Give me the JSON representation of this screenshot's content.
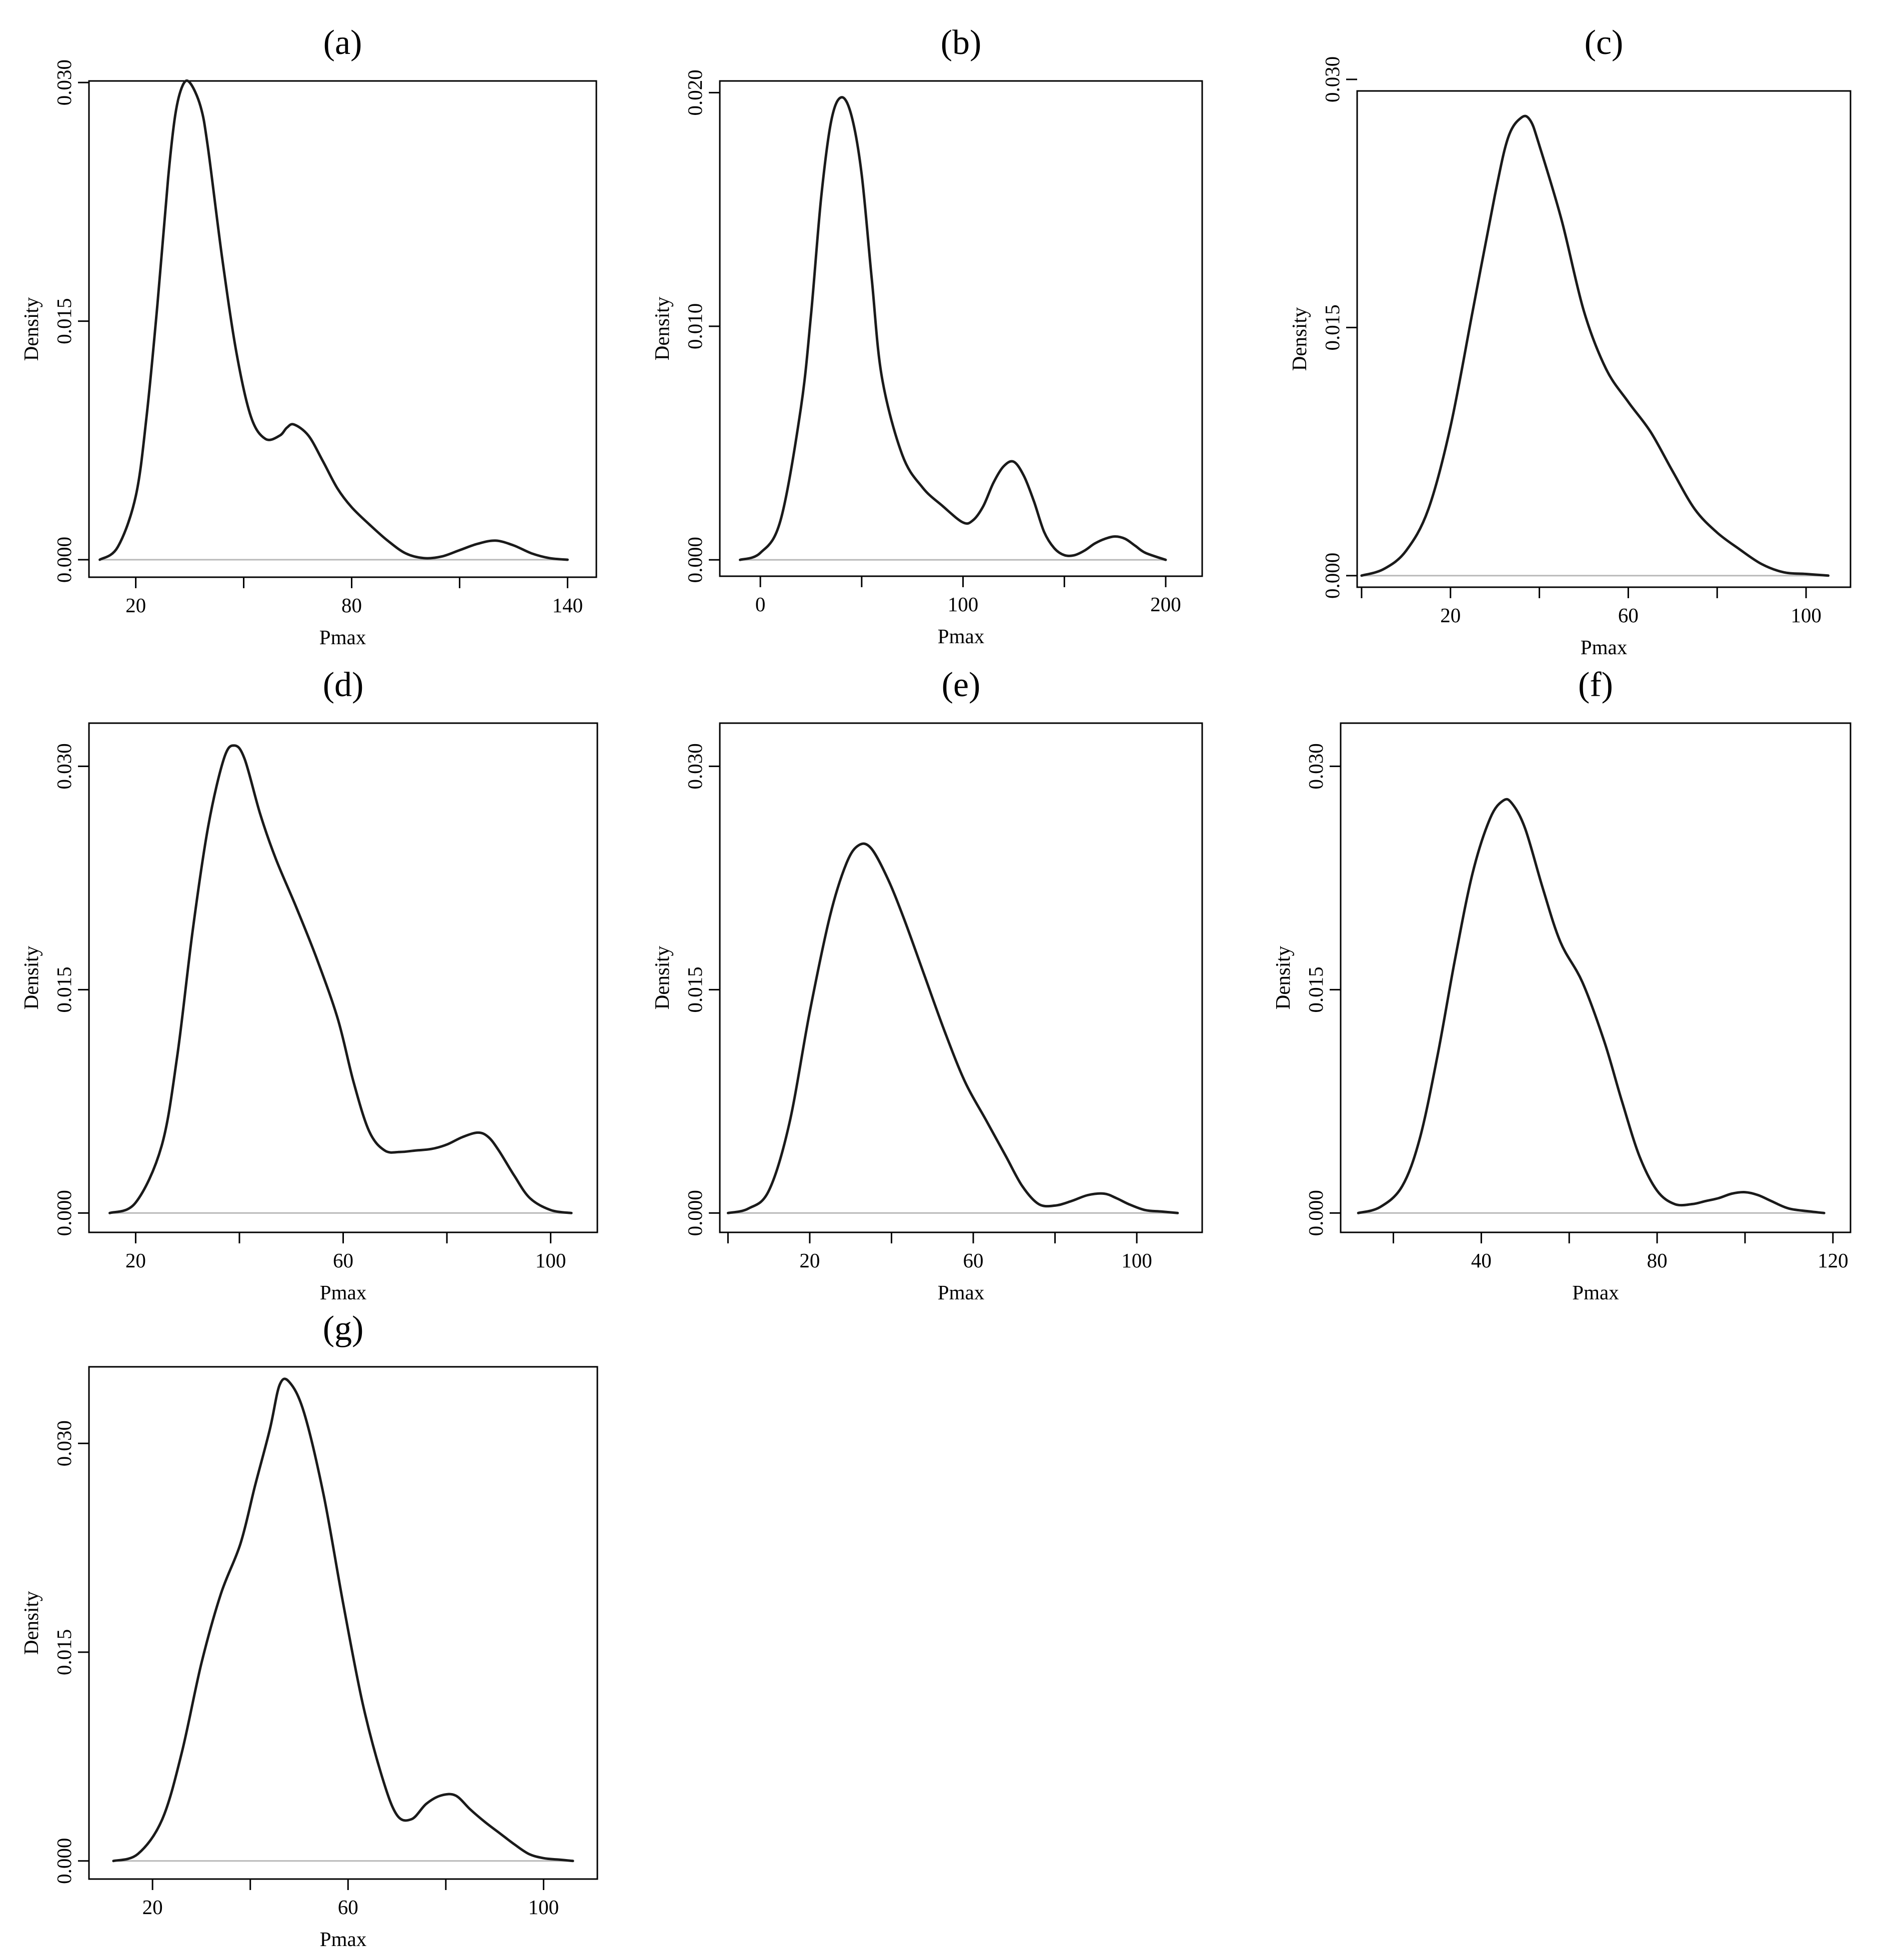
{
  "chart_data": [
    {
      "panel": "(a)",
      "type": "line",
      "xlabel": "Pmax",
      "ylabel": "Density",
      "xlim": [
        7,
        148
      ],
      "ylim": [
        -0.0011,
        0.0301
      ],
      "xticks": [
        20,
        80,
        140
      ],
      "xminor": [
        50,
        110
      ],
      "yticks": [
        0.0,
        0.015,
        0.03
      ],
      "ytick_labels": [
        "0.000",
        "0.015",
        "0.030"
      ],
      "x": [
        10,
        15,
        20,
        23,
        26,
        29,
        31,
        33,
        35,
        38,
        40,
        44,
        48,
        52,
        56,
        60,
        62,
        64,
        68,
        72,
        76,
        80,
        85,
        90,
        95,
        100,
        105,
        110,
        115,
        120,
        125,
        130,
        135,
        140
      ],
      "values": [
        0.0,
        0.0008,
        0.004,
        0.009,
        0.016,
        0.024,
        0.028,
        0.0298,
        0.03,
        0.0285,
        0.026,
        0.019,
        0.013,
        0.009,
        0.0076,
        0.0078,
        0.0083,
        0.0085,
        0.0078,
        0.0062,
        0.0045,
        0.0033,
        0.0022,
        0.0012,
        0.0004,
        0.0001,
        0.0002,
        0.0006,
        0.001,
        0.0012,
        0.0009,
        0.0004,
        0.0001,
        0.0
      ]
    },
    {
      "panel": "(b)",
      "type": "line",
      "xlabel": "Pmax",
      "ylabel": "Density",
      "xlim": [
        -20,
        218
      ],
      "ylim": [
        -0.0007,
        0.0205
      ],
      "xticks": [
        0,
        100,
        200
      ],
      "xminor": [
        50,
        150
      ],
      "yticks": [
        0.0,
        0.01,
        0.02
      ],
      "ytick_labels": [
        "0.000",
        "0.010",
        "0.020"
      ],
      "x": [
        -10,
        0,
        10,
        20,
        25,
        30,
        35,
        40,
        45,
        50,
        55,
        60,
        70,
        80,
        90,
        100,
        105,
        110,
        115,
        120,
        125,
        130,
        135,
        140,
        145,
        150,
        155,
        160,
        165,
        170,
        175,
        180,
        185,
        190,
        200
      ],
      "values": [
        0.0,
        0.0003,
        0.0017,
        0.0065,
        0.0105,
        0.0155,
        0.0188,
        0.0198,
        0.019,
        0.0165,
        0.012,
        0.0078,
        0.0045,
        0.0031,
        0.0023,
        0.0016,
        0.0017,
        0.0023,
        0.0033,
        0.004,
        0.0042,
        0.0036,
        0.0025,
        0.0012,
        0.0005,
        0.0002,
        0.0002,
        0.0004,
        0.0007,
        0.0009,
        0.001,
        0.0009,
        0.0006,
        0.0003,
        0.0
      ]
    },
    {
      "panel": "(c)",
      "type": "line",
      "xlabel": "Pmax",
      "ylabel": "Density",
      "xlim": [
        -1,
        110
      ],
      "ylim": [
        -0.0007,
        0.0293
      ],
      "xticks": [
        20,
        60,
        100
      ],
      "xminor": [
        0,
        40,
        80
      ],
      "yticks": [
        0.0,
        0.015,
        0.03
      ],
      "ytick_labels": [
        "0.000",
        "0.015",
        "0.030"
      ],
      "x": [
        0,
        5,
        10,
        15,
        20,
        25,
        30,
        33,
        36,
        38,
        40,
        45,
        50,
        55,
        60,
        65,
        70,
        75,
        80,
        85,
        90,
        95,
        100,
        105
      ],
      "values": [
        0.0,
        0.0004,
        0.0015,
        0.004,
        0.009,
        0.016,
        0.023,
        0.0265,
        0.0277,
        0.0275,
        0.026,
        0.0215,
        0.016,
        0.0125,
        0.0105,
        0.0087,
        0.0063,
        0.004,
        0.0026,
        0.0016,
        0.0007,
        0.0002,
        0.0001,
        0.0
      ]
    },
    {
      "panel": "(d)",
      "type": "line",
      "xlabel": "Pmax",
      "ylabel": "Density",
      "xlim": [
        11,
        109
      ],
      "ylim": [
        -0.0013,
        0.0329
      ],
      "xticks": [
        20,
        60,
        100
      ],
      "xminor": [
        40,
        80
      ],
      "yticks": [
        0.0,
        0.015,
        0.03
      ],
      "ytick_labels": [
        "0.000",
        "0.015",
        "0.030"
      ],
      "x": [
        15,
        20,
        25,
        28,
        31,
        34,
        37,
        39,
        41,
        44,
        47,
        51,
        55,
        59,
        62,
        65,
        68,
        71,
        74,
        77,
        80,
        83,
        86,
        88,
        90,
        93,
        96,
        100,
        104
      ],
      "values": [
        0.0,
        0.0007,
        0.0045,
        0.0105,
        0.019,
        0.026,
        0.0305,
        0.0314,
        0.0305,
        0.0268,
        0.0238,
        0.0205,
        0.017,
        0.013,
        0.0088,
        0.0055,
        0.0042,
        0.0041,
        0.0042,
        0.0043,
        0.0046,
        0.0051,
        0.0054,
        0.0051,
        0.0042,
        0.0025,
        0.001,
        0.0002,
        0.0
      ]
    },
    {
      "panel": "(e)",
      "type": "line",
      "xlabel": "Pmax",
      "ylabel": "Density",
      "xlim": [
        -2,
        116
      ],
      "ylim": [
        -0.0013,
        0.0329
      ],
      "xticks": [
        20,
        60,
        100
      ],
      "xminor": [
        0,
        40,
        80
      ],
      "yticks": [
        0.0,
        0.015,
        0.03
      ],
      "ytick_labels": [
        "0.000",
        "0.015",
        "0.030"
      ],
      "x": [
        0,
        5,
        10,
        15,
        20,
        25,
        29,
        32,
        35,
        39,
        43,
        48,
        53,
        58,
        63,
        68,
        72,
        76,
        80,
        84,
        88,
        92,
        95,
        98,
        102,
        106,
        110
      ],
      "values": [
        0.0,
        0.0003,
        0.0015,
        0.006,
        0.0135,
        0.02,
        0.0235,
        0.0247,
        0.0245,
        0.0225,
        0.0198,
        0.016,
        0.0122,
        0.0088,
        0.0063,
        0.0038,
        0.0018,
        0.0006,
        0.0005,
        0.0008,
        0.0012,
        0.0013,
        0.001,
        0.0006,
        0.0002,
        0.0001,
        0.0
      ]
    },
    {
      "panel": "(f)",
      "type": "line",
      "xlabel": "Pmax",
      "ylabel": "Density",
      "xlim": [
        8,
        124
      ],
      "ylim": [
        -0.0013,
        0.0329
      ],
      "xticks": [
        40,
        80,
        120
      ],
      "xminor": [
        20,
        60,
        100
      ],
      "yticks": [
        0.0,
        0.015,
        0.03
      ],
      "ytick_labels": [
        "0.000",
        "0.015",
        "0.030"
      ],
      "x": [
        12,
        17,
        22,
        26,
        30,
        34,
        38,
        42,
        45,
        47,
        50,
        54,
        58,
        63,
        68,
        72,
        76,
        80,
        84,
        88,
        91,
        94,
        97,
        100,
        103,
        106,
        110,
        115,
        118
      ],
      "values": [
        0.0,
        0.0004,
        0.0018,
        0.005,
        0.0105,
        0.017,
        0.0228,
        0.0265,
        0.0277,
        0.0275,
        0.0258,
        0.0218,
        0.0182,
        0.0155,
        0.0115,
        0.0075,
        0.0038,
        0.0015,
        0.0006,
        0.0006,
        0.0008,
        0.001,
        0.0013,
        0.0014,
        0.0012,
        0.0008,
        0.0003,
        0.0001,
        0.0
      ]
    },
    {
      "panel": "(g)",
      "type": "line",
      "xlabel": "Pmax",
      "ylabel": "Density",
      "xlim": [
        7,
        111
      ],
      "ylim": [
        -0.0013,
        0.0355
      ],
      "xticks": [
        20,
        60,
        100
      ],
      "xminor": [
        40,
        80
      ],
      "yticks": [
        0.0,
        0.015,
        0.03
      ],
      "ytick_labels": [
        "0.000",
        "0.015",
        "0.030"
      ],
      "x": [
        12,
        17,
        22,
        26,
        30,
        34,
        38,
        41,
        44,
        46,
        48,
        51,
        55,
        59,
        63,
        67,
        70,
        73,
        76,
        79,
        82,
        85,
        88,
        91,
        94,
        97,
        100,
        103,
        106
      ],
      "values": [
        0.0,
        0.0005,
        0.003,
        0.0078,
        0.0142,
        0.0192,
        0.0228,
        0.027,
        0.031,
        0.0342,
        0.0344,
        0.0322,
        0.0263,
        0.0185,
        0.0113,
        0.006,
        0.0033,
        0.003,
        0.0041,
        0.0047,
        0.0047,
        0.0037,
        0.0028,
        0.002,
        0.0012,
        0.0005,
        0.0002,
        0.0001,
        0.0
      ]
    }
  ]
}
